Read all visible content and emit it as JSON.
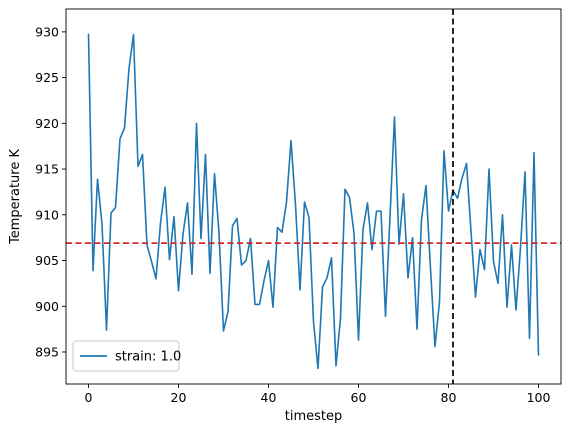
{
  "chart_data": {
    "type": "line",
    "title": "",
    "xlabel": "timestep",
    "ylabel": "Temperature K",
    "xlim": [
      -5,
      105
    ],
    "ylim": [
      891.5,
      932.5
    ],
    "xticks": [
      0,
      20,
      40,
      60,
      80,
      100
    ],
    "yticks": [
      895,
      900,
      905,
      910,
      915,
      920,
      925,
      930
    ],
    "grid": false,
    "legend_position": "lower-left",
    "series": [
      {
        "name": "strain: 1.0",
        "color": "#1f77b4",
        "x": [
          0,
          1,
          2,
          3,
          4,
          5,
          6,
          7,
          8,
          9,
          10,
          11,
          12,
          13,
          14,
          15,
          16,
          17,
          18,
          19,
          20,
          21,
          22,
          23,
          24,
          25,
          26,
          27,
          28,
          29,
          30,
          31,
          32,
          33,
          34,
          35,
          36,
          37,
          38,
          39,
          40,
          41,
          42,
          43,
          44,
          45,
          46,
          47,
          48,
          49,
          50,
          51,
          52,
          53,
          54,
          55,
          56,
          57,
          58,
          59,
          60,
          61,
          62,
          63,
          64,
          65,
          66,
          67,
          68,
          69,
          70,
          71,
          72,
          73,
          74,
          75,
          76,
          77,
          78,
          79,
          80,
          81,
          82,
          83,
          84,
          85,
          86,
          87,
          88,
          89,
          90,
          91,
          92,
          93,
          94,
          95,
          96,
          97,
          98,
          99,
          100
        ],
        "y": [
          929.8,
          903.9,
          913.9,
          909.0,
          897.4,
          910.2,
          910.8,
          918.3,
          919.5,
          926.0,
          929.7,
          915.3,
          916.6,
          906.7,
          904.9,
          903.0,
          909.1,
          913.0,
          905.1,
          909.8,
          901.7,
          907.9,
          911.3,
          903.5,
          920.0,
          907.4,
          916.6,
          903.6,
          914.5,
          908.0,
          897.3,
          899.4,
          908.8,
          909.6,
          904.5,
          905.0,
          907.4,
          900.2,
          900.2,
          902.8,
          905.0,
          899.9,
          908.6,
          908.1,
          911.4,
          918.1,
          911.1,
          901.8,
          911.4,
          909.7,
          898.3,
          893.2,
          902.1,
          903.1,
          905.3,
          893.5,
          898.7,
          912.8,
          911.9,
          908.0,
          896.3,
          908.4,
          911.3,
          906.2,
          910.4,
          910.4,
          898.9,
          909.8,
          920.7,
          906.8,
          912.3,
          903.1,
          907.5,
          897.5,
          909.5,
          913.2,
          904.1,
          895.6,
          900.5,
          917.0,
          910.4,
          912.7,
          911.8,
          914.0,
          915.6,
          908.2,
          901.0,
          906.2,
          904.0,
          915.0,
          904.9,
          902.5,
          910.0,
          899.9,
          906.7,
          899.6,
          906.4,
          914.7,
          896.5,
          916.8,
          894.6
        ]
      }
    ],
    "reference_lines": [
      {
        "orientation": "horizontal",
        "value": 906.9,
        "color": "#d62728",
        "style": "dashed"
      },
      {
        "orientation": "vertical",
        "value": 81,
        "color": "#000000",
        "style": "dashed"
      }
    ]
  }
}
